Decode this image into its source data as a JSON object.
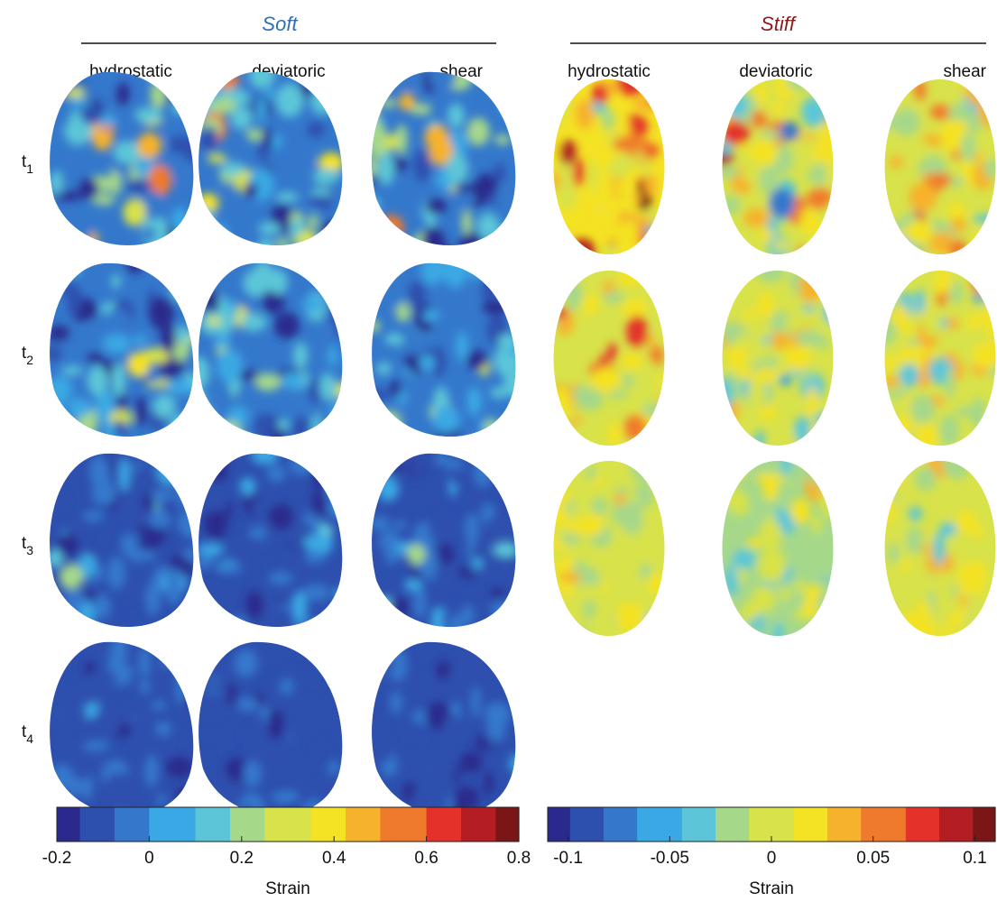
{
  "groups": [
    {
      "title": "Soft",
      "columns": [
        "hydrostatic",
        "deviatoric",
        "shear"
      ]
    },
    {
      "title": "Stiff",
      "columns": [
        "hydrostatic",
        "deviatoric",
        "shear"
      ]
    }
  ],
  "row_labels": [
    [
      "t",
      "1"
    ],
    [
      "t",
      "2"
    ],
    [
      "t",
      "3"
    ],
    [
      "t",
      "4"
    ]
  ],
  "colormap": [
    "#2a2a8c",
    "#2d4fae",
    "#3478cc",
    "#3aa8e4",
    "#5cc6d8",
    "#a6d88a",
    "#d8e24a",
    "#f4e224",
    "#f6b22c",
    "#f07a2c",
    "#e4322a",
    "#b41e22",
    "#7a1616"
  ],
  "colorbars": [
    {
      "label": "Strain",
      "lim": [
        -0.2,
        0.8
      ],
      "ticks": [
        -0.2,
        0,
        0.2,
        0.4,
        0.6,
        0.8
      ]
    },
    {
      "label": "Strain",
      "lim": [
        -0.11,
        0.11
      ],
      "ticks": [
        -0.1,
        -0.05,
        0,
        0.05,
        0.1
      ]
    }
  ]
}
